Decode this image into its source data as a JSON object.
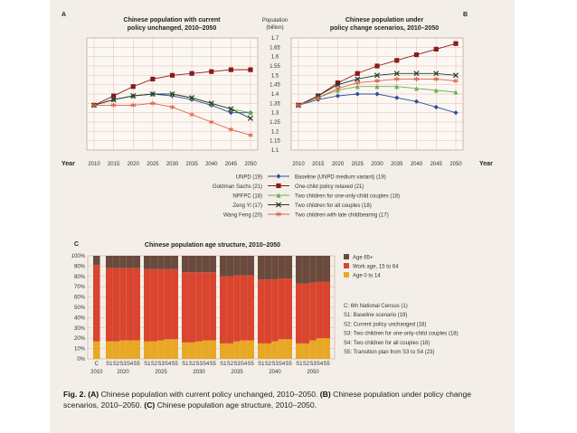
{
  "panel_a": {
    "letter": "A",
    "title_line1": "Chinese population with current",
    "title_line2": "policy unchanged, 2010–2050"
  },
  "panel_b": {
    "letter": "B",
    "title_line1": "Chinese population under",
    "title_line2": "policy change scenarios, 2010–2050"
  },
  "axis_center": {
    "label_line1": "Population",
    "label_line2": "(billion)"
  },
  "year_label": "Year",
  "legend_left": [
    "UNPD (19)",
    "Goldman Sachs (21)",
    "NPFPC (18)",
    "Zeng Yi (17)",
    "Wang Feng (20)"
  ],
  "legend_right": [
    "Baseline (UNPD medium variant) (19)",
    "One-child policy relaxed (21)",
    "Two children for one-only-child couples (18)",
    "Two children for all couples (18)",
    "Two children with late childbearing (17)"
  ],
  "panel_c": {
    "letter": "C",
    "title": "Chinese population age structure, 2010–2050",
    "legend": [
      "Age 65+",
      "Work age, 15 to 64",
      "Age 0 to 14"
    ],
    "scenario_notes": [
      "C: 6th National Census (1)",
      "S1: Baseline scenario (19)",
      "S2: Current policy unchanged (18)",
      "S3: Two children for one-only-child couples (18)",
      "S4: Two children for all couples (18)",
      "S5: Transition plan from S3 to S4 (23)"
    ]
  },
  "caption": {
    "fig": "Fig. 2.",
    "a_label": "(A)",
    "a_text": "Chinese population with current policy unchanged, 2010–2050.",
    "b_label": "(B)",
    "b_text": "Chinese population under policy change scenarios, 2010–2050.",
    "c_label": "(C)",
    "c_text": "Chinese population age structure, 2010–2050."
  },
  "colors": {
    "grid": "#e8b9b0",
    "frame": "#c9a49a",
    "blue": "#2d4f9a",
    "dark_red": "#8b1a1a",
    "green": "#6fae4f",
    "dark_green": "#243a2a",
    "salmon": "#e0604b",
    "age65": "#6b4a3e",
    "work": "#d9452f",
    "young": "#e8a825"
  },
  "chart_data": [
    {
      "type": "line",
      "id": "A",
      "x": [
        2010,
        2015,
        2020,
        2025,
        2030,
        2035,
        2040,
        2045,
        2050
      ],
      "ylim": [
        1.1,
        1.7
      ],
      "yticks": [
        "1.1",
        "1.15",
        "1.2",
        "1.25",
        "1.3",
        "1.35",
        "1.4",
        "1.45",
        "1.5",
        "1.55",
        "1.6",
        "1.65",
        "1.7"
      ],
      "series": [
        {
          "name": "UNPD (19)",
          "color": "blue",
          "marker": "diamond",
          "values": [
            1.34,
            1.37,
            1.39,
            1.4,
            1.39,
            1.37,
            1.34,
            1.3,
            1.3
          ]
        },
        {
          "name": "Goldman Sachs (21)",
          "color": "dark_red",
          "marker": "square",
          "values": [
            1.34,
            1.39,
            1.44,
            1.48,
            1.5,
            1.51,
            1.52,
            1.53,
            1.53
          ]
        },
        {
          "name": "NPFPC (18)",
          "color": "green",
          "marker": "triangle",
          "values": [
            1.34,
            1.37,
            1.39,
            1.4,
            1.4,
            1.38,
            1.35,
            1.32,
            1.3
          ]
        },
        {
          "name": "Zeng Yi (17)",
          "color": "dark_green",
          "marker": "x",
          "values": [
            1.34,
            1.37,
            1.39,
            1.4,
            1.4,
            1.38,
            1.35,
            1.32,
            1.27
          ]
        },
        {
          "name": "Wang Feng (20)",
          "color": "salmon",
          "marker": "star",
          "values": [
            1.34,
            1.34,
            1.34,
            1.35,
            1.33,
            1.29,
            1.25,
            1.21,
            1.18
          ]
        }
      ]
    },
    {
      "type": "line",
      "id": "B",
      "x": [
        2010,
        2015,
        2020,
        2025,
        2030,
        2035,
        2040,
        2045,
        2050
      ],
      "ylim": [
        1.1,
        1.7
      ],
      "series": [
        {
          "name": "Baseline (UNPD medium variant) (19)",
          "color": "blue",
          "marker": "diamond",
          "values": [
            1.34,
            1.37,
            1.39,
            1.4,
            1.4,
            1.38,
            1.36,
            1.33,
            1.3
          ]
        },
        {
          "name": "One-child policy relaxed (21)",
          "color": "dark_red",
          "marker": "square",
          "values": [
            1.34,
            1.39,
            1.46,
            1.51,
            1.55,
            1.58,
            1.61,
            1.64,
            1.67
          ]
        },
        {
          "name": "Two children for one-only-child couples (18)",
          "color": "green",
          "marker": "triangle",
          "values": [
            1.34,
            1.38,
            1.42,
            1.44,
            1.44,
            1.44,
            1.43,
            1.42,
            1.41
          ]
        },
        {
          "name": "Two children for all couples (18)",
          "color": "dark_green",
          "marker": "x",
          "values": [
            1.34,
            1.39,
            1.45,
            1.48,
            1.5,
            1.51,
            1.51,
            1.51,
            1.5
          ]
        },
        {
          "name": "Two children with late childbearing (17)",
          "color": "salmon",
          "marker": "star",
          "values": [
            1.34,
            1.38,
            1.43,
            1.46,
            1.47,
            1.48,
            1.48,
            1.48,
            1.47
          ]
        }
      ]
    },
    {
      "type": "bar",
      "id": "C",
      "stacked": true,
      "ylim": [
        0,
        100
      ],
      "yticks": [
        "0%",
        "10%",
        "20%",
        "30%",
        "40%",
        "50%",
        "60%",
        "70%",
        "80%",
        "90%",
        "100%"
      ],
      "year_labels": [
        "2010",
        "2020",
        "2025",
        "2030",
        "2035",
        "2040",
        "2050"
      ],
      "categories": [
        "C",
        "S1",
        "S2",
        "S3",
        "S4",
        "S5",
        "S1",
        "S2",
        "S3",
        "S4",
        "S5",
        "S1",
        "S2",
        "S3",
        "S4",
        "S5",
        "S1",
        "S2",
        "S3",
        "S4",
        "S5",
        "S1",
        "S2",
        "S3",
        "S4",
        "S5",
        "S1",
        "S2",
        "S3",
        "S4",
        "S5"
      ],
      "series": [
        {
          "name": "Age 0 to 14",
          "color": "young",
          "values": [
            17,
            17,
            17,
            18,
            18,
            18,
            17,
            17,
            18,
            19,
            19,
            16,
            16,
            17,
            18,
            18,
            15,
            15,
            17,
            18,
            18,
            15,
            15,
            17,
            19,
            19,
            15,
            15,
            18,
            20,
            20
          ]
        },
        {
          "name": "Work age, 15 to 64",
          "color": "work",
          "values": [
            74,
            71,
            71,
            70,
            70,
            70,
            70,
            70,
            69,
            68,
            68,
            68,
            68,
            67,
            66,
            66,
            65,
            65,
            64,
            63,
            63,
            62,
            62,
            60,
            59,
            59,
            58,
            58,
            56,
            55,
            55
          ]
        },
        {
          "name": "Age 65+",
          "color": "age65",
          "values": [
            9,
            12,
            12,
            12,
            12,
            12,
            13,
            13,
            13,
            13,
            13,
            16,
            16,
            16,
            16,
            16,
            20,
            20,
            19,
            19,
            19,
            23,
            23,
            23,
            22,
            22,
            27,
            27,
            26,
            25,
            25
          ]
        }
      ]
    }
  ]
}
